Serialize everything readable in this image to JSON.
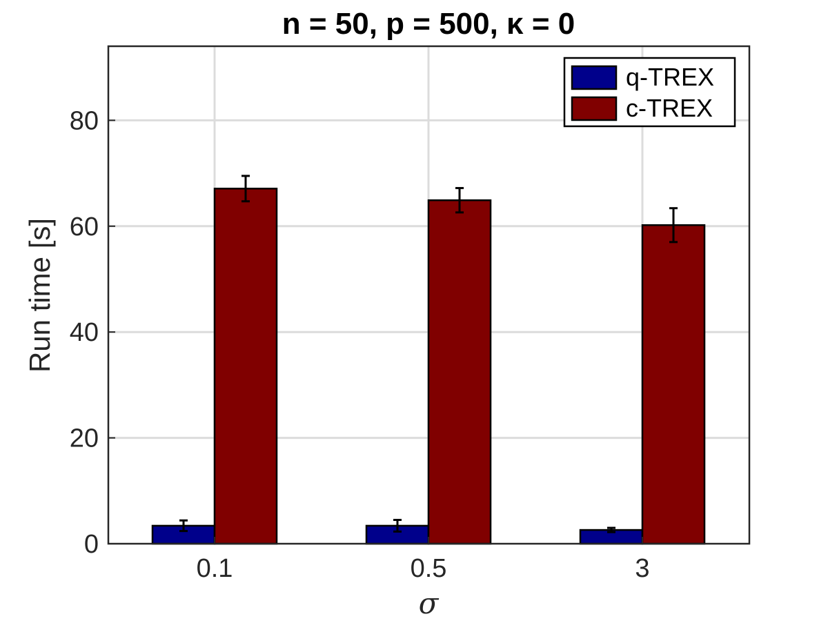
{
  "chart_data": {
    "type": "bar",
    "title": "n = 50, p = 500, κ = 0",
    "xlabel": "σ",
    "ylabel": "Run time [s]",
    "categories": [
      "0.1",
      "0.5",
      "3"
    ],
    "ylim": [
      0,
      94
    ],
    "yticks": [
      "0",
      "20",
      "40",
      "60",
      "80"
    ],
    "grid": true,
    "legend_position": "top-right",
    "series": [
      {
        "name": "q-TREX",
        "color": "#00008b",
        "values": [
          3.4,
          3.4,
          2.6
        ],
        "errors": [
          1.0,
          1.1,
          0.4
        ]
      },
      {
        "name": "c-TREX",
        "color": "#800000",
        "values": [
          67.1,
          64.9,
          60.2
        ],
        "errors": [
          2.4,
          2.3,
          3.2
        ]
      }
    ]
  }
}
